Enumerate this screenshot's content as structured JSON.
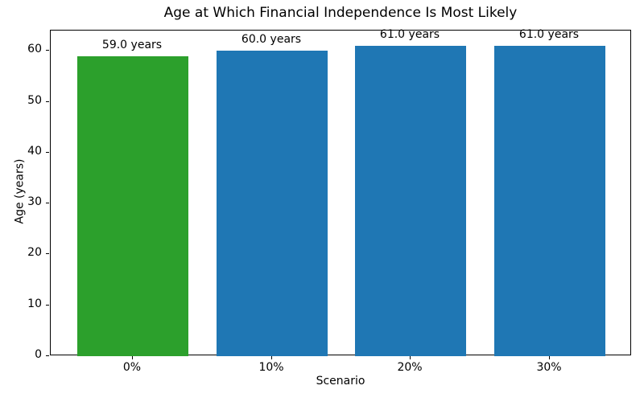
{
  "chart_data": {
    "type": "bar",
    "title": "Age at Which Financial Independence Is Most Likely",
    "xlabel": "Scenario",
    "ylabel": "Age (years)",
    "categories": [
      "0%",
      "10%",
      "20%",
      "30%"
    ],
    "values": [
      59.0,
      60.0,
      61.0,
      61.0
    ],
    "bar_labels": [
      "59.0 years",
      "60.0 years",
      "61.0 years",
      "61.0 years"
    ],
    "bar_colors": [
      "#2ca02c",
      "#1f77b4",
      "#1f77b4",
      "#1f77b4"
    ],
    "yticks": [
      0,
      10,
      20,
      30,
      40,
      50,
      60
    ],
    "ylim": [
      0,
      64
    ],
    "grid": false,
    "legend_position": "none",
    "background_color": "#ffffff",
    "text_color": "#000000"
  }
}
